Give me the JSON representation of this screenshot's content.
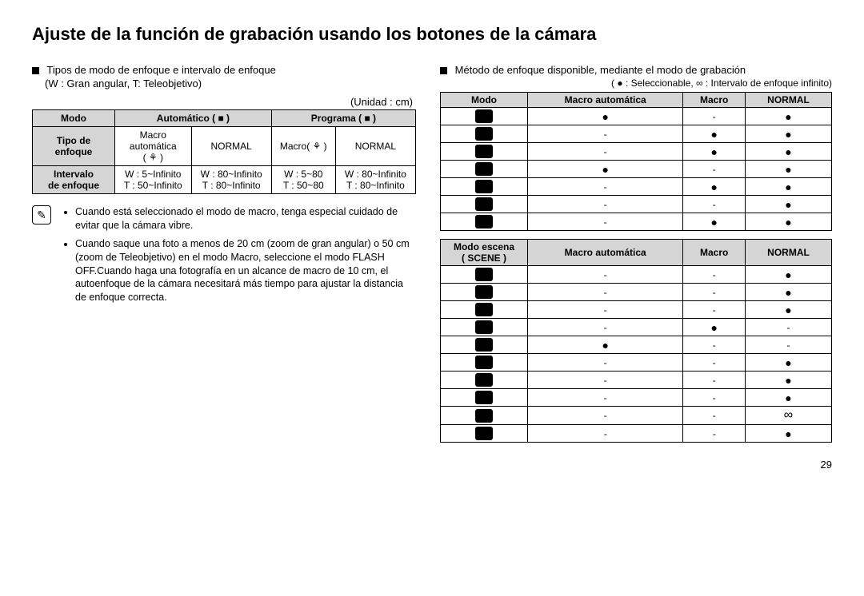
{
  "title": "Ajuste de la función de grabación usando los botones de la cámara",
  "left": {
    "heading": "Tipos de modo de enfoque e intervalo de enfoque",
    "subnote": "(W : Gran angular, T: Teleobjetivo)",
    "unit": "(Unidad : cm)",
    "table": {
      "h_modo": "Modo",
      "h_auto": "Automático ( ■ )",
      "h_prog": "Programa ( ■ )",
      "r_tipo": "Tipo de\nenfoque",
      "tipo_auto1": "Macro\nautomática\n( ⚘ )",
      "tipo_auto2": "NORMAL",
      "tipo_prog1": "Macro( ⚘ )",
      "tipo_prog2": "NORMAL",
      "r_int": "Intervalo\nde enfoque",
      "int_c1": "W : 5~Infinito\nT : 50~Infinito",
      "int_c2": "W : 80~Infinito\nT  : 80~Infinito",
      "int_c3": "W : 5~80\nT  : 50~80",
      "int_c4": "W : 80~Infinito\nT  : 80~Infinito"
    },
    "note1": "Cuando está seleccionado el modo de macro, tenga especial cuidado de evitar que la cámara vibre.",
    "note2": "Cuando saque una foto a menos de 20 cm (zoom de gran angular) o 50 cm (zoom de Teleobjetivo) en el modo Macro, seleccione el modo FLASH OFF.Cuando haga una fotografía en un alcance de macro de 10 cm, el autoenfoque de la cámara necesitará más tiempo para ajustar la distancia de enfoque correcta."
  },
  "right": {
    "heading": "Método de enfoque disponible, mediante el modo de grabación",
    "legend": "( ● : Seleccionable,  ∞ : Intervalo de enfoque infinito)",
    "table1": {
      "h_modo": "Modo",
      "h_macroauto": "Macro automática",
      "h_macro": "Macro",
      "h_normal": "NORMAL",
      "rows": [
        [
          "●",
          "-",
          "●"
        ],
        [
          "-",
          "●",
          "●"
        ],
        [
          "-",
          "●",
          "●"
        ],
        [
          "●",
          "-",
          "●"
        ],
        [
          "-",
          "●",
          "●"
        ],
        [
          "-",
          "-",
          "●"
        ],
        [
          "-",
          "●",
          "●"
        ]
      ]
    },
    "table2": {
      "h_modo": "Modo escena\n( SCENE )",
      "h_macroauto": "Macro automática",
      "h_macro": "Macro",
      "h_normal": "NORMAL",
      "rows": [
        [
          "-",
          "-",
          "●"
        ],
        [
          "-",
          "-",
          "●"
        ],
        [
          "-",
          "-",
          "●"
        ],
        [
          "-",
          "●",
          "-"
        ],
        [
          "●",
          "-",
          "-"
        ],
        [
          "-",
          "-",
          "●"
        ],
        [
          "-",
          "-",
          "●"
        ],
        [
          "-",
          "-",
          "●"
        ],
        [
          "-",
          "-",
          "∞"
        ],
        [
          "-",
          "-",
          "●"
        ]
      ]
    }
  },
  "page": "29"
}
